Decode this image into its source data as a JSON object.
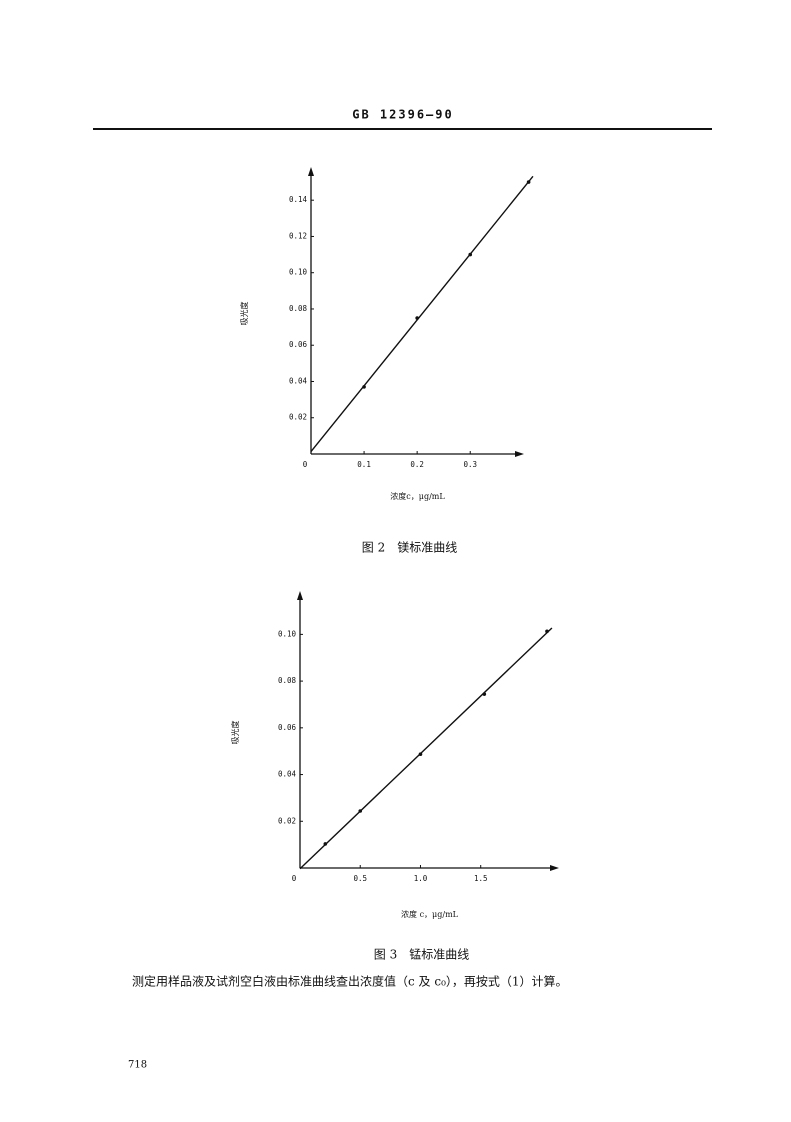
{
  "header": {
    "code": "GB 12396—90"
  },
  "chart_data": [
    {
      "type": "scatter",
      "color": "#111",
      "trendline": true,
      "xlabel": "浓度c，μg/mL",
      "ylabel": "吸光度",
      "caption": "图 2　镁标准曲线",
      "x": [
        0.1,
        0.2,
        0.3,
        0.41
      ],
      "values": [
        0.037,
        0.075,
        0.11,
        0.15
      ],
      "xlim": [
        0,
        0.39
      ],
      "ylim": [
        0,
        0.155
      ],
      "xticks": [
        0,
        0.1,
        0.2,
        0.3
      ],
      "yticks": [
        0.02,
        0.04,
        0.06,
        0.08,
        {
          "value": 0.1,
          "label": "0.10"
        },
        0.12,
        0.14
      ]
    },
    {
      "type": "scatter",
      "color": "#111",
      "trendline": true,
      "xlabel": "浓度 c，μg/mL",
      "ylabel": "吸光度",
      "caption": "图 3　锰标准曲线",
      "x": [
        0.21,
        0.5,
        1,
        1.53,
        2.05
      ],
      "values": [
        0.0103,
        0.0244,
        0.0487,
        0.0744,
        0.1013
      ],
      "xlim": [
        0,
        2.1
      ],
      "ylim": [
        0,
        0.116
      ],
      "xticks": [
        0,
        0.5,
        {
          "value": 1,
          "label": "1.0"
        },
        1.5
      ],
      "yticks": [
        0.02,
        0.04,
        0.06,
        0.08,
        {
          "value": 0.1,
          "label": "0.10"
        }
      ]
    }
  ],
  "body": {
    "text": "测定用样品液及试剂空白液由标准曲线查出浓度值（c 及 c₀），再按式（1）计算。"
  },
  "footer": {
    "page": "718"
  }
}
